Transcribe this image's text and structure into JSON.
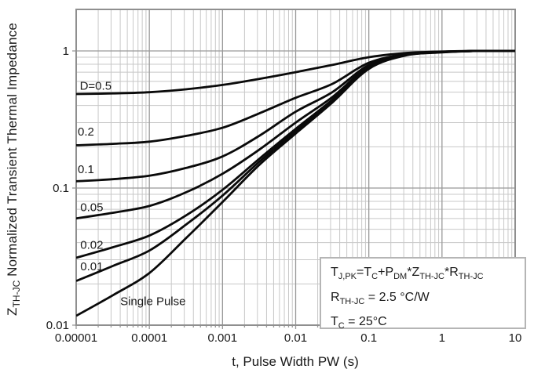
{
  "figure": {
    "background": "#ffffff",
    "curve_color": "#0a0a0a",
    "grid_minor_color": "#c8c8c8",
    "grid_major_color": "#999999",
    "frame_color": "#8f8f8f",
    "text_color": "#1a1a1a"
  },
  "labels": {
    "x_title": "t, Pulse Width PW (s)",
    "y_title_parts": [
      {
        "t": "Z"
      },
      {
        "t": "TH-JC",
        "sub": true
      },
      {
        "t": " Normalized Transient Thermal Impedance"
      }
    ]
  },
  "annotation": {
    "lines": [
      {
        "parts": [
          {
            "t": "T"
          },
          {
            "t": "J,PK",
            "sub": true
          },
          {
            "t": "=T"
          },
          {
            "t": "C",
            "sub": true
          },
          {
            "t": "+P"
          },
          {
            "t": "DM",
            "sub": true
          },
          {
            "t": "*Z"
          },
          {
            "t": "TH-JC",
            "sub": true
          },
          {
            "t": "*R"
          },
          {
            "t": "TH-JC",
            "sub": true
          }
        ]
      },
      {
        "parts": [
          {
            "t": "R"
          },
          {
            "t": "TH-JC",
            "sub": true
          },
          {
            "t": " = 2.5 °C/W"
          }
        ]
      },
      {
        "parts": [
          {
            "t": "T"
          },
          {
            "t": "C",
            "sub": true
          },
          {
            "t": " = 25°C"
          }
        ]
      }
    ]
  },
  "chart_data": {
    "type": "line",
    "title": "",
    "xlabel": "t, Pulse Width PW (s)",
    "ylabel": "Z_TH-JC Normalized Transient Thermal Impedance",
    "x_scale": "log",
    "y_scale": "log",
    "xlim": [
      1e-05,
      10
    ],
    "ylim": [
      0.01,
      2
    ],
    "grid": true,
    "legend": "inline-labels",
    "x_ticks": [
      {
        "v": 1e-05,
        "label": "0.00001"
      },
      {
        "v": 0.0001,
        "label": "0.0001"
      },
      {
        "v": 0.001,
        "label": "0.001"
      },
      {
        "v": 0.01,
        "label": "0.01"
      },
      {
        "v": 0.1,
        "label": "0.1"
      },
      {
        "v": 1,
        "label": "1"
      },
      {
        "v": 10,
        "label": "10"
      }
    ],
    "y_ticks": [
      {
        "v": 1,
        "label": "1"
      },
      {
        "v": 0.1,
        "label": "0.1"
      },
      {
        "v": 0.01,
        "label": "0.01"
      }
    ],
    "x": [
      1e-05,
      3.16e-05,
      0.0001,
      0.000316,
      0.001,
      0.00316,
      0.01,
      0.0316,
      0.1,
      0.316,
      1,
      3.16,
      10
    ],
    "series": [
      {
        "name": "D=0.5",
        "label": "D=0.5",
        "label_at": [
          1.12e-05,
          0.52
        ],
        "values": [
          0.485,
          0.49,
          0.5,
          0.525,
          0.565,
          0.625,
          0.7,
          0.79,
          0.9,
          0.965,
          0.99,
          1.0,
          1.0
        ]
      },
      {
        "name": "D=0.2",
        "label": "0.2",
        "label_at": [
          1.05e-05,
          0.242
        ],
        "values": [
          0.205,
          0.21,
          0.218,
          0.24,
          0.275,
          0.35,
          0.455,
          0.575,
          0.82,
          0.945,
          0.985,
          1.0,
          1.0
        ]
      },
      {
        "name": "D=0.1",
        "label": "0.1",
        "label_at": [
          1.05e-05,
          0.128
        ],
        "values": [
          0.112,
          0.116,
          0.123,
          0.14,
          0.17,
          0.24,
          0.36,
          0.5,
          0.79,
          0.94,
          0.985,
          1.0,
          1.0
        ]
      },
      {
        "name": "D=0.05",
        "label": "0.05",
        "label_at": [
          1.14e-05,
          0.068
        ],
        "values": [
          0.06,
          0.066,
          0.074,
          0.093,
          0.127,
          0.19,
          0.3,
          0.46,
          0.77,
          0.935,
          0.98,
          1.0,
          1.0
        ]
      },
      {
        "name": "D=0.02",
        "label": "0.02",
        "label_at": [
          1.14e-05,
          0.036
        ],
        "values": [
          0.031,
          0.037,
          0.045,
          0.063,
          0.097,
          0.163,
          0.27,
          0.44,
          0.76,
          0.93,
          0.98,
          1.0,
          1.0
        ]
      },
      {
        "name": "D=0.01",
        "label": "0.01",
        "label_at": [
          1.14e-05,
          0.0251
        ],
        "values": [
          0.021,
          0.027,
          0.035,
          0.054,
          0.088,
          0.155,
          0.26,
          0.43,
          0.75,
          0.93,
          0.98,
          1.0,
          1.0
        ]
      },
      {
        "name": "Single Pulse",
        "label": "Single Pulse",
        "label_at": [
          4e-05,
          0.014
        ],
        "values": [
          0.0117,
          0.0165,
          0.024,
          0.043,
          0.079,
          0.147,
          0.25,
          0.42,
          0.74,
          0.925,
          0.975,
          1.0,
          1.0
        ]
      }
    ]
  }
}
